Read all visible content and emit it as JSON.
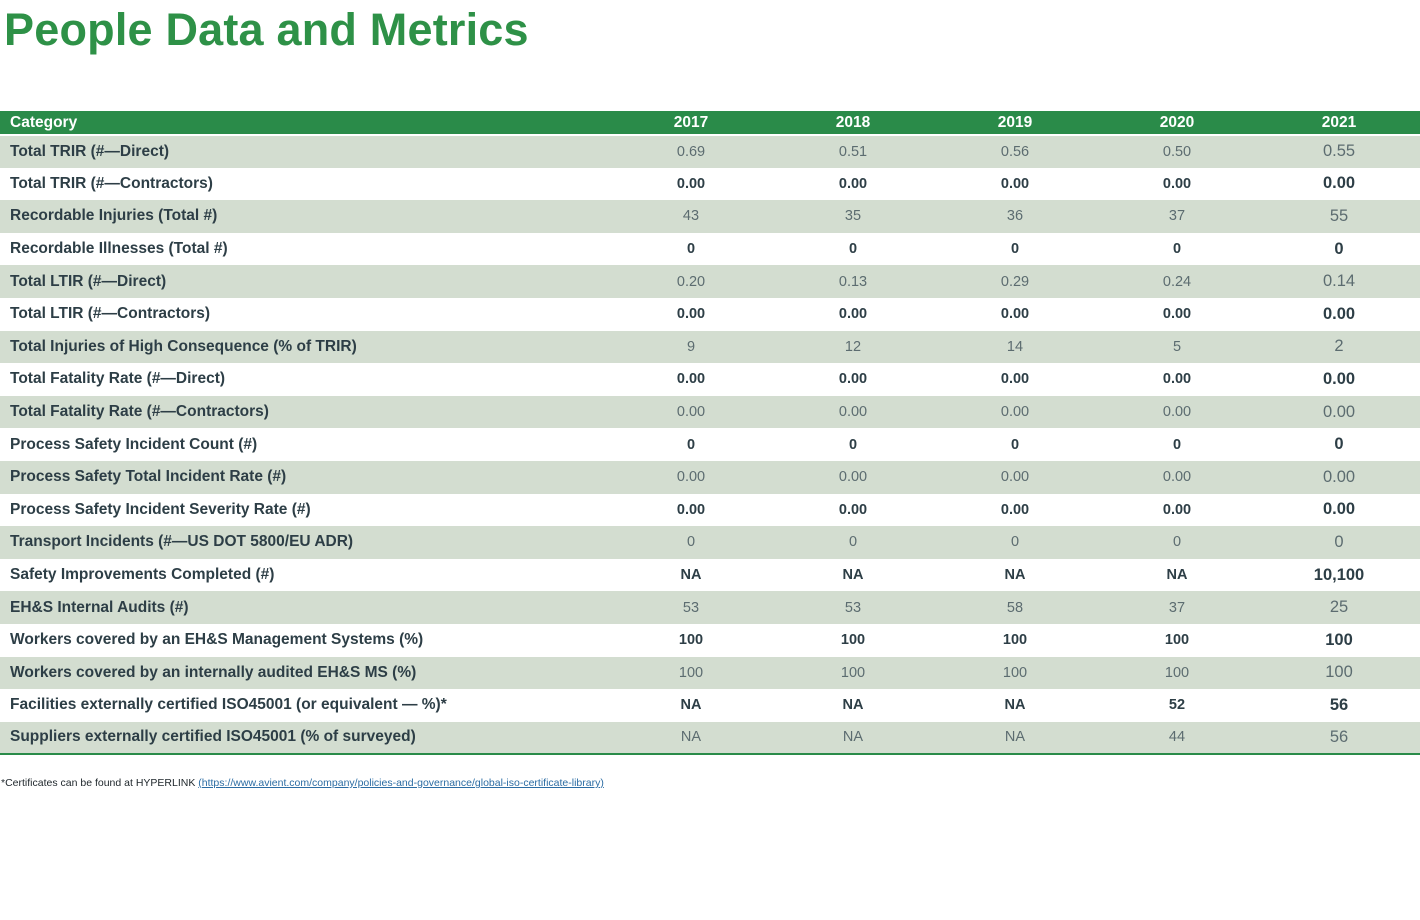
{
  "page": {
    "title": "People Data and Metrics"
  },
  "colors": {
    "title_green": "#2e9147",
    "header_green": "#2a8b49",
    "row_stripe_green": "#d3ddd0",
    "label_dark": "#2d3e46",
    "value_gray": "#5c6c70",
    "link_blue": "#2b6ca3"
  },
  "table": {
    "columns": [
      "Category",
      "2017",
      "2018",
      "2019",
      "2020",
      "2021"
    ],
    "rows": [
      {
        "label": "Total TRIR (#—Direct)",
        "values": [
          "0.69",
          "0.51",
          "0.56",
          "0.50",
          "0.55"
        ]
      },
      {
        "label": "Total TRIR (#—Contractors)",
        "values": [
          "0.00",
          "0.00",
          "0.00",
          "0.00",
          "0.00"
        ]
      },
      {
        "label": "Recordable Injuries (Total #)",
        "values": [
          "43",
          "35",
          "36",
          "37",
          "55"
        ]
      },
      {
        "label": "Recordable Illnesses (Total #)",
        "values": [
          "0",
          "0",
          "0",
          "0",
          "0"
        ]
      },
      {
        "label": "Total LTIR (#—Direct)",
        "values": [
          "0.20",
          "0.13",
          "0.29",
          "0.24",
          "0.14"
        ]
      },
      {
        "label": "Total LTIR (#—Contractors)",
        "values": [
          "0.00",
          "0.00",
          "0.00",
          "0.00",
          "0.00"
        ]
      },
      {
        "label": "Total Injuries of High Consequence (% of TRIR)",
        "values": [
          "9",
          "12",
          "14",
          "5",
          "2"
        ]
      },
      {
        "label": "Total Fatality Rate (#—Direct)",
        "values": [
          "0.00",
          "0.00",
          "0.00",
          "0.00",
          "0.00"
        ]
      },
      {
        "label": "Total Fatality Rate (#—Contractors)",
        "values": [
          "0.00",
          "0.00",
          "0.00",
          "0.00",
          "0.00"
        ]
      },
      {
        "label": "Process Safety Incident Count (#)",
        "values": [
          "0",
          "0",
          "0",
          "0",
          "0"
        ]
      },
      {
        "label": "Process Safety Total Incident Rate (#)",
        "values": [
          "0.00",
          "0.00",
          "0.00",
          "0.00",
          "0.00"
        ]
      },
      {
        "label": "Process Safety Incident Severity Rate (#)",
        "values": [
          "0.00",
          "0.00",
          "0.00",
          "0.00",
          "0.00"
        ]
      },
      {
        "label": "Transport Incidents (#—US DOT 5800/EU ADR)",
        "values": [
          "0",
          "0",
          "0",
          "0",
          "0"
        ]
      },
      {
        "label": "Safety Improvements Completed (#)",
        "values": [
          "NA",
          "NA",
          "NA",
          "NA",
          "10,100"
        ]
      },
      {
        "label": "EH&S Internal Audits (#)",
        "values": [
          "53",
          "53",
          "58",
          "37",
          "25"
        ]
      },
      {
        "label": "Workers covered by an EH&S Management Systems (%)",
        "values": [
          "100",
          "100",
          "100",
          "100",
          "100"
        ]
      },
      {
        "label": "Workers covered by an internally audited EH&S MS (%)",
        "values": [
          "100",
          "100",
          "100",
          "100",
          "100"
        ]
      },
      {
        "label": "Facilities externally certified ISO45001 (or equivalent — %)*",
        "values": [
          "NA",
          "NA",
          "NA",
          "52",
          "56"
        ]
      },
      {
        "label": "Suppliers externally certified ISO45001 (% of surveyed)",
        "values": [
          "NA",
          "NA",
          "NA",
          "44",
          "56"
        ]
      }
    ]
  },
  "footnote": {
    "prefix": "*Certificates can be found at HYPERLINK ",
    "link_text": "(https://www.avient.com/company/policies-and-governance/global-iso-certificate-library)"
  }
}
